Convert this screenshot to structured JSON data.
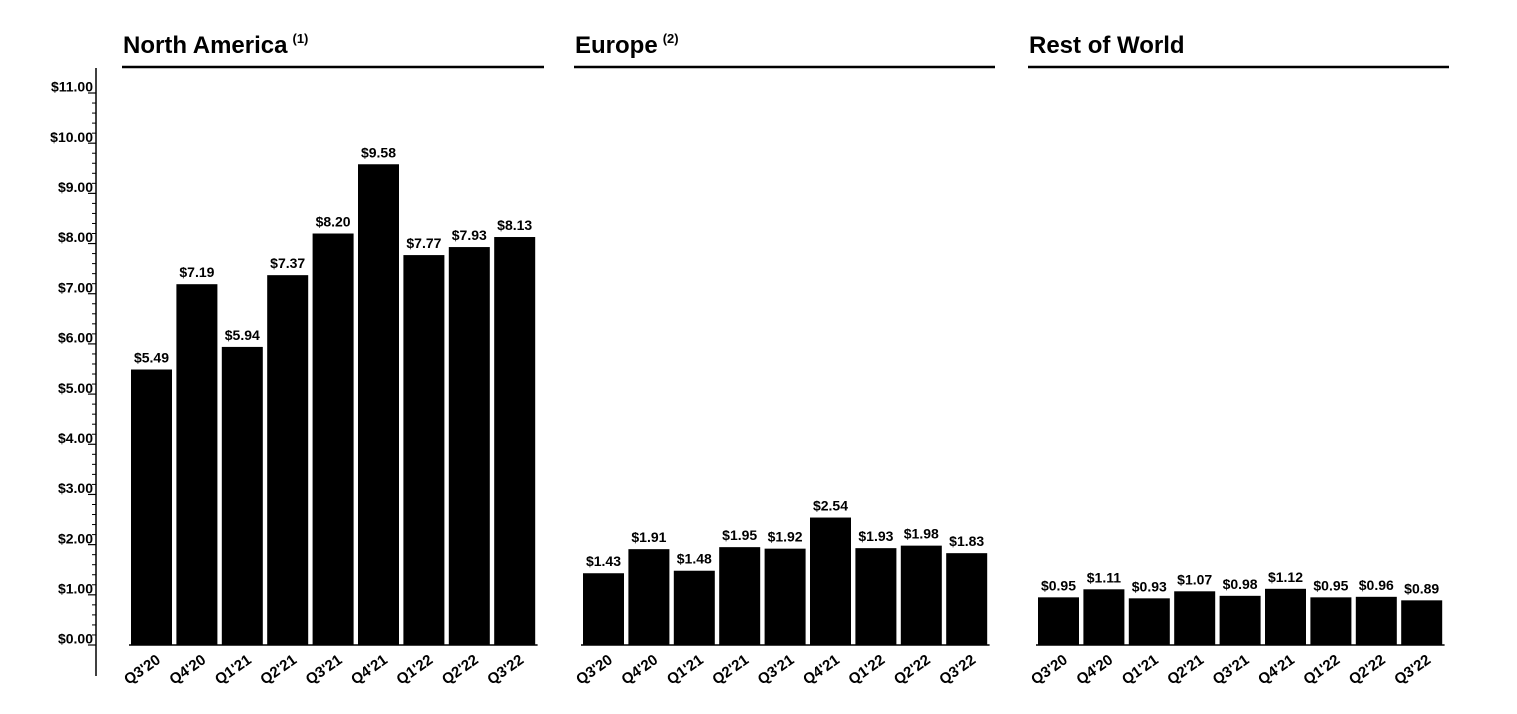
{
  "chart_data": [
    {
      "type": "bar",
      "title": "North America",
      "footnote": "(1)",
      "color": "#000000",
      "categories": [
        "Q3'20",
        "Q4'20",
        "Q1'21",
        "Q2'21",
        "Q3'21",
        "Q4'21",
        "Q1'22",
        "Q2'22",
        "Q3'22"
      ],
      "values": [
        5.49,
        7.19,
        5.94,
        7.37,
        8.2,
        9.58,
        7.77,
        7.93,
        8.13
      ],
      "value_labels": [
        "$5.49",
        "$7.19",
        "$5.94",
        "$7.37",
        "$8.20",
        "$9.58",
        "$7.77",
        "$7.93",
        "$8.13"
      ],
      "ylim": [
        0,
        11
      ],
      "yticks": [
        {
          "value": 0,
          "label": "$0.00"
        },
        {
          "value": 1,
          "label": "$1.00"
        },
        {
          "value": 2,
          "label": "$2.00"
        },
        {
          "value": 3,
          "label": "$3.00"
        },
        {
          "value": 4,
          "label": "$4.00"
        },
        {
          "value": 5,
          "label": "$5.00"
        },
        {
          "value": 6,
          "label": "$6.00"
        },
        {
          "value": 7,
          "label": "$7.00"
        },
        {
          "value": 8,
          "label": "$8.00"
        },
        {
          "value": 9,
          "label": "$9.00"
        },
        {
          "value": 10,
          "label": "$10.00"
        },
        {
          "value": 11,
          "label": "$11.00"
        }
      ]
    },
    {
      "type": "bar",
      "title": "Europe",
      "footnote": "(2)",
      "color": "#000000",
      "categories": [
        "Q3'20",
        "Q4'20",
        "Q1'21",
        "Q2'21",
        "Q3'21",
        "Q4'21",
        "Q1'22",
        "Q2'22",
        "Q3'22"
      ],
      "values": [
        1.43,
        1.91,
        1.48,
        1.95,
        1.92,
        2.54,
        1.93,
        1.98,
        1.83
      ],
      "value_labels": [
        "$1.43",
        "$1.91",
        "$1.48",
        "$1.95",
        "$1.92",
        "$2.54",
        "$1.93",
        "$1.98",
        "$1.83"
      ],
      "ylim": [
        0,
        11
      ]
    },
    {
      "type": "bar",
      "title": "Rest of World",
      "color": "#000000",
      "categories": [
        "Q3'20",
        "Q4'20",
        "Q1'21",
        "Q2'21",
        "Q3'21",
        "Q4'21",
        "Q1'22",
        "Q2'22",
        "Q3'22"
      ],
      "values": [
        0.95,
        1.11,
        0.93,
        1.07,
        0.98,
        1.12,
        0.95,
        0.96,
        0.89
      ],
      "value_labels": [
        "$0.95",
        "$1.11",
        "$0.93",
        "$1.07",
        "$0.98",
        "$1.12",
        "$0.95",
        "$0.96",
        "$0.89"
      ],
      "ylim": [
        0,
        11
      ]
    }
  ]
}
